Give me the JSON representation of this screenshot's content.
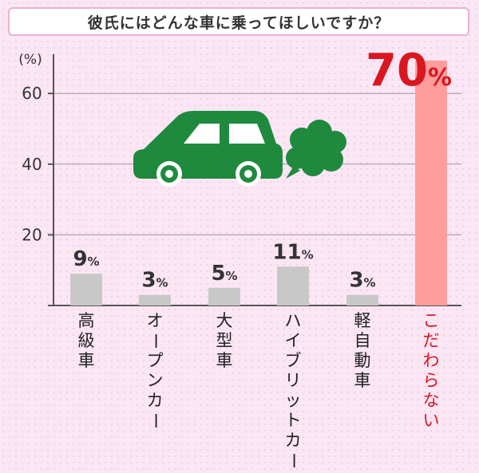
{
  "chart_data": {
    "type": "bar",
    "title": "彼氏にはどんな車に乗ってほしいですか？",
    "ylabel": "(%)",
    "ylim": [
      0,
      70
    ],
    "yticks": [
      20,
      40,
      60
    ],
    "grid": true,
    "categories": [
      "高級車",
      "オープンカー",
      "大型車",
      "ハイブリットカー",
      "軽自動車",
      "こだわらない"
    ],
    "values": [
      9,
      3,
      5,
      11,
      3,
      70
    ],
    "value_labels": [
      "9",
      "3",
      "5",
      "11",
      "3",
      "70"
    ],
    "unit": "%",
    "highlight_index": 5,
    "colors": {
      "bar": "#c8c8c8",
      "highlight_bar": "#ff9c9c",
      "highlight_text": "#d81820",
      "car": "#1f8a3e"
    }
  },
  "illustration": {
    "icon": "car-with-exhaust-cloud-icon"
  }
}
